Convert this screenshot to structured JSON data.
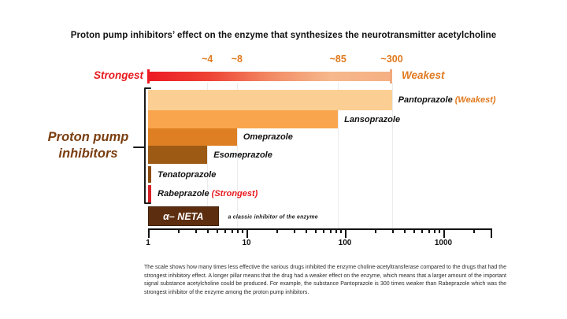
{
  "title": "Proton pump inhibitors’ effect on the enzyme that synthesizes the neurotransmitter acetylcholine",
  "scale_bar": {
    "left_label": "Strongest",
    "right_label": "Weakest",
    "ticks": [
      {
        "label": "~4",
        "value": 4
      },
      {
        "label": "~8",
        "value": 8
      },
      {
        "label": "~85",
        "value": 85
      },
      {
        "label": "~300",
        "value": 300
      }
    ],
    "gradient_stops": [
      "#ec1c24",
      "#ee4334",
      "#f28a64",
      "#f6b88c",
      "#f5b083"
    ],
    "left_cap_color": "#ec1c24",
    "right_cap_color": "#f2a87d"
  },
  "group_label": "Proton pump inhibitors",
  "chart_data": {
    "type": "bar",
    "orientation": "horizontal",
    "xscale": "log",
    "xlim": [
      1,
      3000
    ],
    "x_axis_ticks": [
      1,
      10,
      100,
      1000
    ],
    "gridlines": [
      4,
      8,
      85,
      300
    ],
    "ylabel": "",
    "xlabel": "",
    "bars": [
      {
        "label": "Pantoprazole",
        "suffix": " (Weakest)",
        "suffix_color": "#e07a1f",
        "value": 300,
        "color": "#fbcf93"
      },
      {
        "label": "Lansoprazole",
        "value": 85,
        "color": "#f9a54e"
      },
      {
        "label": "Omeprazole",
        "value": 8,
        "color": "#dd7f22"
      },
      {
        "label": "Esomeprazole",
        "value": 4,
        "color": "#9d5a14"
      },
      {
        "label": "Tenatoprazole",
        "value": 1.08,
        "color": "#8b4a10"
      },
      {
        "label": "Rabeprazole",
        "suffix": " (Strongest)",
        "suffix_color": "#e8191c",
        "value": 1.08,
        "color": "#d42028"
      },
      {
        "label": "α– NETA",
        "value": 5.2,
        "color": "#5c2d0f",
        "border": "#401f06",
        "label_inside": true,
        "note": "a classic inhibitor of the enzyme"
      }
    ]
  },
  "caption": "The scale shows how many times less effective the various drugs inhibited the enzyme choline-acetyltransferase compared to the drugs that had the strongest inhibitory effect. A longer pillar means that the drug had a weaker effect on the enzyme, which means that a larger amount of the important signal substance acetylcholine could be produced. For example, the substance Pantoprazole is 300 times weaker than Rabeprazole which was the strongest inhibitor of the enzyme among the proton pump inhibitors."
}
